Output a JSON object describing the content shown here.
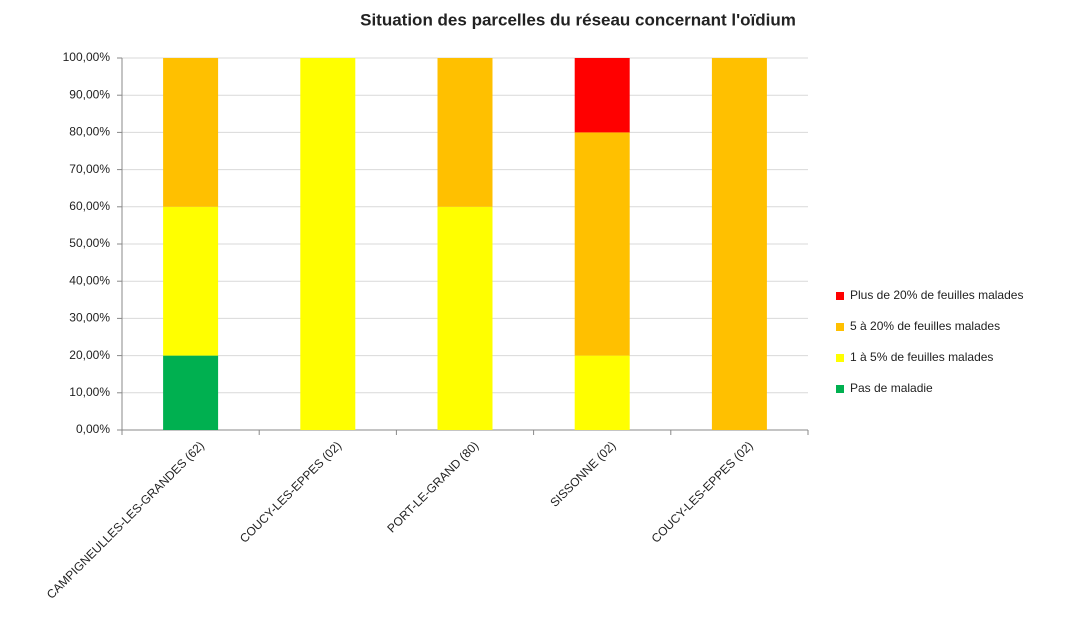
{
  "chart_data": {
    "type": "stacked_bar",
    "title": "Situation des parcelles du réseau concernant l'oïdium",
    "categories": [
      "CAMPIGNEULLES-LES-GRANDES (62)",
      "COUCY-LES-EPPES (02)",
      "PORT-LE-GRAND (80)",
      "SISSONNE (02)",
      "COUCY-LES-EPPES (02)"
    ],
    "series": [
      {
        "name": "Pas de maladie",
        "color": "#00b050",
        "values": [
          20,
          0,
          0,
          0,
          0
        ]
      },
      {
        "name": "1 à 5% de feuilles malades",
        "color": "#ffff00",
        "values": [
          40,
          100,
          60,
          20,
          0
        ]
      },
      {
        "name": "5 à 20% de feuilles malades",
        "color": "#ffc000",
        "values": [
          40,
          0,
          40,
          60,
          100
        ]
      },
      {
        "name": "Plus de 20% de feuilles malades",
        "color": "#ff0000",
        "values": [
          0,
          0,
          0,
          20,
          0
        ]
      }
    ],
    "ylim": [
      0,
      100
    ],
    "yticks": [
      {
        "value": 0,
        "label": "0,00%"
      },
      {
        "value": 10,
        "label": "10,00%"
      },
      {
        "value": 20,
        "label": "20,00%"
      },
      {
        "value": 30,
        "label": "30,00%"
      },
      {
        "value": 40,
        "label": "40,00%"
      },
      {
        "value": 50,
        "label": "50,00%"
      },
      {
        "value": 60,
        "label": "60,00%"
      },
      {
        "value": 70,
        "label": "70,00%"
      },
      {
        "value": 80,
        "label": "80,00%"
      },
      {
        "value": 90,
        "label": "90,00%"
      },
      {
        "value": 100,
        "label": "100,00%"
      }
    ],
    "grid": true,
    "legend": "right"
  }
}
